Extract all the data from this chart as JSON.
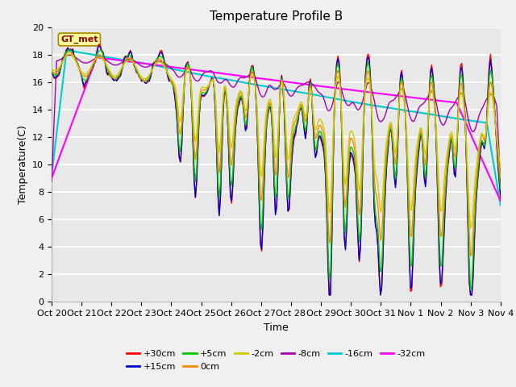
{
  "title": "Temperature Profile B",
  "xlabel": "Time",
  "ylabel": "Temperature(C)",
  "ylim": [
    0,
    20
  ],
  "tick_labels": [
    "Oct 20",
    "Oct 21",
    "Oct 22",
    "Oct 23",
    "Oct 24",
    "Oct 25",
    "Oct 26",
    "Oct 27",
    "Oct 28",
    "Oct 29",
    "Oct 30",
    "Oct 31",
    "Nov 1",
    "Nov 2",
    "Nov 3",
    "Nov 4"
  ],
  "series_colors": {
    "+30cm": "#ff0000",
    "+15cm": "#0000cc",
    "+5cm": "#00cc00",
    "0cm": "#ff8800",
    "-2cm": "#cccc00",
    "-8cm": "#aa00aa",
    "-16cm": "#00cccc",
    "-32cm": "#ff00ff"
  },
  "annotation_text": "GT_met",
  "annotation_bg": "#ffff99",
  "annotation_border": "#aa8800",
  "plot_bg": "#e8e8e8",
  "grid_color": "#ffffff",
  "title_fontsize": 11,
  "label_fontsize": 9,
  "tick_fontsize": 8
}
